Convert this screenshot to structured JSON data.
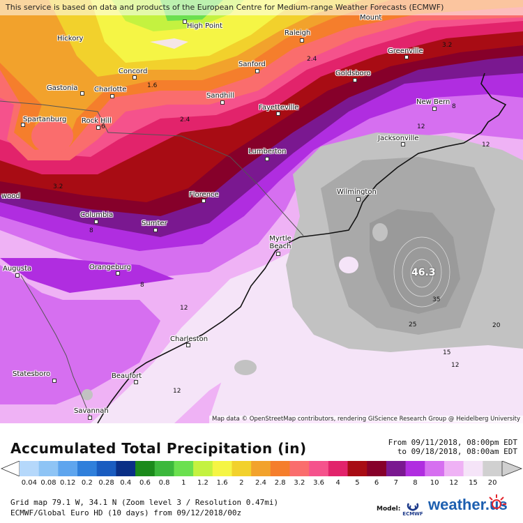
{
  "map": {
    "attribution_top": "This service is based on data and products of the European Centre for Medium-range Weather Forecasts (ECMWF)",
    "attribution_bottom": "Map data © OpenStreetMap contributors, rendering GIScience Research Group @ Heidelberg University",
    "cities": [
      {
        "name": "Hickory"
      },
      {
        "name": "High Point"
      },
      {
        "name": "Raleigh"
      },
      {
        "name": "Mount"
      },
      {
        "name": "Concord"
      },
      {
        "name": "Sanford"
      },
      {
        "name": "Greenville"
      },
      {
        "name": "Gastonia"
      },
      {
        "name": "Charlotte"
      },
      {
        "name": "Goldsboro"
      },
      {
        "name": "Sandhill"
      },
      {
        "name": "Fayetteville"
      },
      {
        "name": "New Bern"
      },
      {
        "name": "Spartanburg"
      },
      {
        "name": "Rock Hill"
      },
      {
        "name": "Jacksonville"
      },
      {
        "name": "Lumberton"
      },
      {
        "name": "Wilmington"
      },
      {
        "name": "wood"
      },
      {
        "name": "Florence"
      },
      {
        "name": "Columbia"
      },
      {
        "name": "Sumter"
      },
      {
        "name": "Myrtle Beach"
      },
      {
        "name": "Augusta"
      },
      {
        "name": "Orangeburg"
      },
      {
        "name": "Charleston"
      },
      {
        "name": "Statesboro"
      },
      {
        "name": "Beaufort"
      },
      {
        "name": "Savannah"
      }
    ],
    "contour_labels": [
      "3.2",
      "2.4",
      "1.6",
      "2.4",
      "3.2",
      "8",
      "12",
      "12",
      "8",
      "6",
      "8",
      "12",
      "12",
      "35",
      "25",
      "20",
      "15",
      "12"
    ],
    "max_value": "46.3"
  },
  "legend": {
    "title": "Accumulated Total Precipitation (in)",
    "period_from": "From 09/11/2018, 08:00pm EDT",
    "period_to": "to 09/18/2018, 08:00am EDT",
    "ticks": [
      "0.04",
      "0.08",
      "0.12",
      "0.2",
      "0.28",
      "0.4",
      "0.6",
      "0.8",
      "1",
      "1.2",
      "1.6",
      "2",
      "2.4",
      "2.8",
      "3.2",
      "3.6",
      "4",
      "5",
      "6",
      "7",
      "8",
      "10",
      "12",
      "15",
      "20"
    ],
    "colors": [
      "#b5d8fb",
      "#8ec4f5",
      "#5ea5ee",
      "#2f7fdb",
      "#1a5cc0",
      "#0a2f86",
      "#1b8a1b",
      "#3cb83c",
      "#6be04f",
      "#c4f240",
      "#f5f545",
      "#f2d12c",
      "#f2a22c",
      "#f57e2c",
      "#fa6d6d",
      "#f5528c",
      "#e2236b",
      "#a80c14",
      "#86002a",
      "#7a1890",
      "#b02de0",
      "#d66ff0",
      "#efb2f5",
      "#f5e4f8",
      "#d0d0d0"
    ],
    "info_line1": "Grid map 79.1 W, 34.1 N (Zoom level 3 / Resolution 0.47mi)",
    "info_line2": "ECMWF/Global Euro HD (10 days) from 09/12/2018/00z",
    "model_label": "Model:",
    "model_name": "ECMWF",
    "brand": "weather.us"
  }
}
